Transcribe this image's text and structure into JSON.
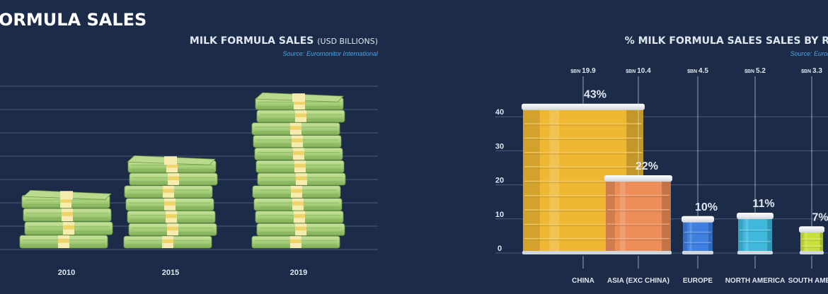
{
  "page": {
    "title": "ORMULA SALES"
  },
  "left_chart": {
    "title_main": "MILK FORMULA SALES",
    "title_unit": "(USD BILLIONS)",
    "source": "Source: Euromonitor International"
  },
  "right_chart": {
    "title": "% MILK FORMULA SALES SALES BY R",
    "source": "Source: Euror"
  },
  "chart_data": [
    {
      "type": "bar",
      "title": "MILK FORMULA SALES (USD BILLIONS)",
      "source": "Source: Euromonitor International",
      "categories": [
        "2010",
        "2015",
        "2019"
      ],
      "values": [
        25.5,
        42.0,
        72.0
      ],
      "note": "bars drawn as stacks of banknote bundles, no value labels shown",
      "grid": true,
      "colors": {
        "bill": "#a9cf7e",
        "band": "#f5e7a0",
        "background": "#1c2b47"
      }
    },
    {
      "type": "bar",
      "title": "% MILK FORMULA SALES SALES BY R",
      "source": "Source: Euror",
      "categories": [
        "CHINA",
        "ASIA (EXC CHINA)",
        "EUROPE",
        "NORTH AMERICA",
        "SOUTH AMER"
      ],
      "values": [
        43,
        22,
        10,
        11,
        7
      ],
      "value_labels": [
        "43%",
        "22%",
        "10%",
        "11%",
        "7%"
      ],
      "prefix": "$BN",
      "top_values": [
        "19.9",
        "10.4",
        "4.5",
        "5.2",
        "3.3"
      ],
      "y_ticks": [
        "0",
        "10",
        "20",
        "30",
        "40"
      ],
      "ylim": [
        0,
        45
      ],
      "grid": true,
      "colors": [
        "#efb833",
        "#ec8e58",
        "#3f7fe0",
        "#3fb8dc",
        "#c9e03c"
      ]
    }
  ]
}
